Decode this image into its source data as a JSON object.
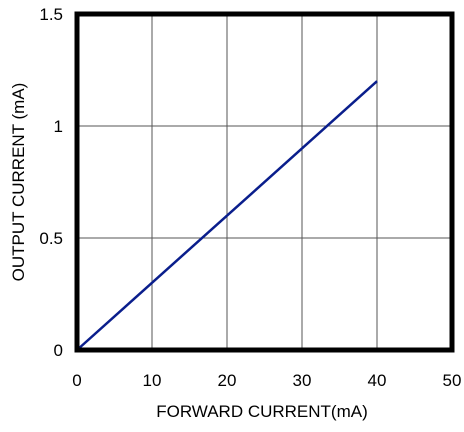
{
  "chart_data": {
    "type": "line",
    "title": "",
    "xlabel": "FORWARD CURRENT(mA)",
    "ylabel": "OUTPUT  CURRENT (mA)",
    "xlim": [
      0,
      50
    ],
    "ylim": [
      0,
      1.5
    ],
    "x_ticks": [
      0,
      10,
      20,
      30,
      40,
      50
    ],
    "y_ticks": [
      0,
      0.5,
      1,
      1.5
    ],
    "x_tick_labels": [
      "0",
      "10",
      "20",
      "30",
      "40",
      "50"
    ],
    "y_tick_labels": [
      "0",
      "0.5",
      "1",
      "1.5"
    ],
    "grid": true,
    "legend": "none",
    "series": [
      {
        "x": [
          0,
          40
        ],
        "y": [
          0,
          1.2
        ],
        "color": "#0a1e8c"
      }
    ],
    "colors": {
      "frame": "#000000",
      "grid": "#555555",
      "line": "#0a1e8c"
    }
  }
}
